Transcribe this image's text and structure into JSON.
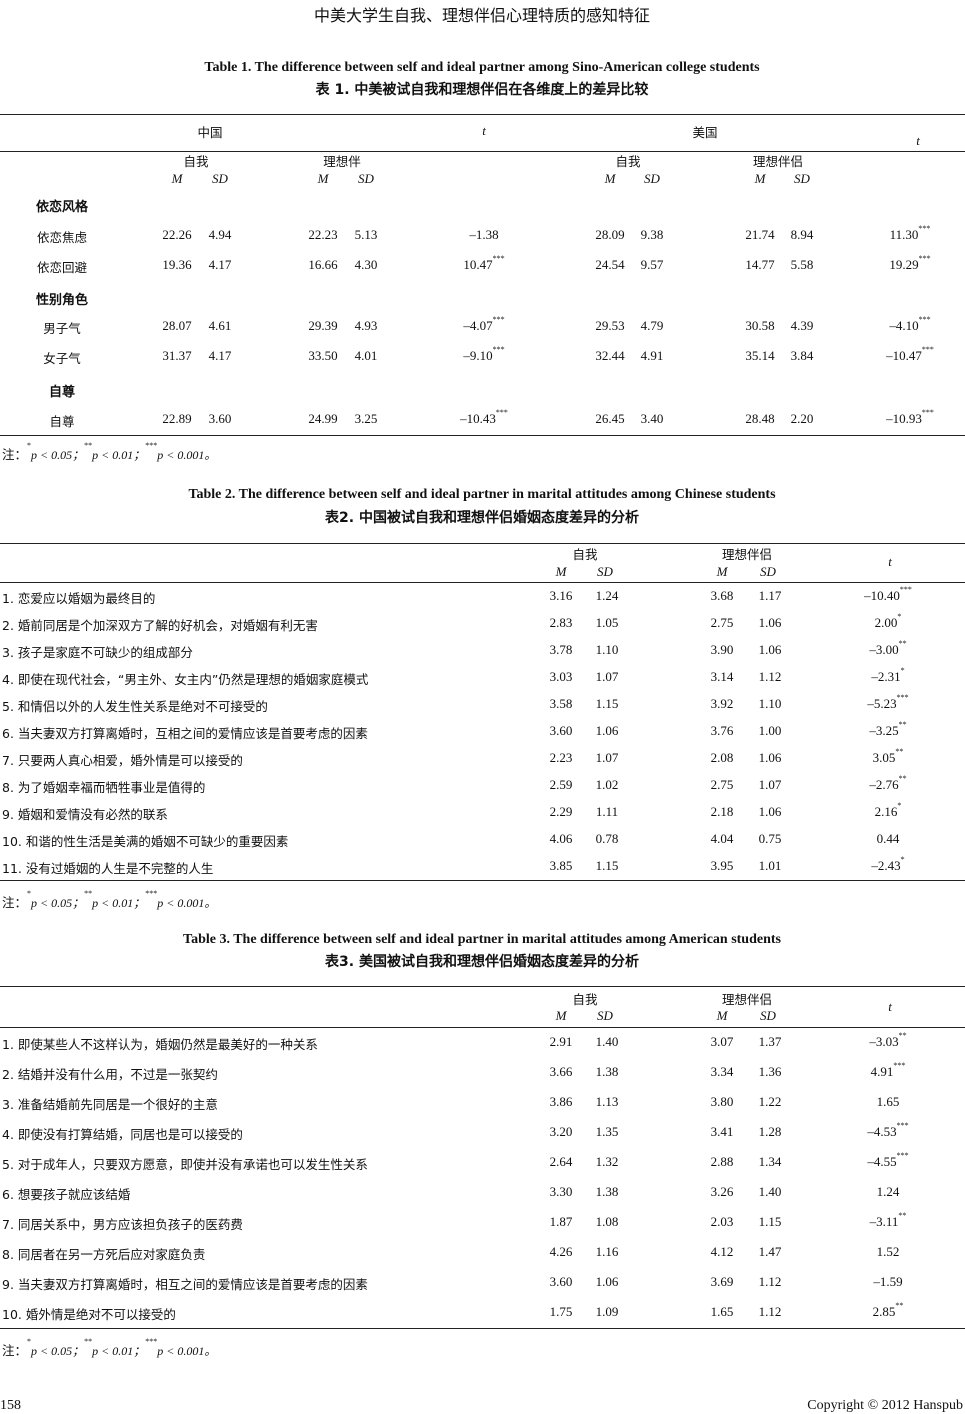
{
  "running_header": "中美大学生自我、理想伴侣心理特质的感知特征",
  "common": {
    "self": "自我",
    "ideal": "理想伴侣",
    "M": "M",
    "SD": "SD",
    "t": "t",
    "note_prefix": "注：",
    "note_p1": "p < 0.05；",
    "note_p2": "p < 0.01；",
    "note_p3": "p < 0.001。",
    "sig1": "*",
    "sig2": "**",
    "sig3": "***"
  },
  "table1": {
    "caption_en": "Table 1. The difference between self and ideal partner among Sino-American college students",
    "caption_zh": "表 1.  中美被试自我和理想伴侣在各维度上的差异比较",
    "group_china": "中国",
    "group_usa": "美国",
    "self": "自我",
    "ideal_cn": "理想伴",
    "ideal_us": "理想伴侣",
    "rows": [
      {
        "label": "依恋风格",
        "section": true
      },
      {
        "label": "依恋焦虑",
        "v": [
          "22.26",
          "4.94",
          "22.23",
          "5.13",
          "–1.38",
          "",
          "28.09",
          "9.38",
          "21.74",
          "8.94",
          "11.30",
          "***"
        ]
      },
      {
        "label": "依恋回避",
        "v": [
          "19.36",
          "4.17",
          "16.66",
          "4.30",
          "10.47",
          "***",
          "24.54",
          "9.57",
          "14.77",
          "5.58",
          "19.29",
          "***"
        ]
      },
      {
        "label": "性别角色",
        "section": true
      },
      {
        "label": "男子气",
        "v": [
          "28.07",
          "4.61",
          "29.39",
          "4.93",
          "–4.07",
          "***",
          "29.53",
          "4.79",
          "30.58",
          "4.39",
          "–4.10",
          "***"
        ]
      },
      {
        "label": "女子气",
        "v": [
          "31.37",
          "4.17",
          "33.50",
          "4.01",
          "–9.10",
          "***",
          "32.44",
          "4.91",
          "35.14",
          "3.84",
          "–10.47",
          "***"
        ]
      },
      {
        "label": "自尊",
        "section": true
      },
      {
        "label": "自尊",
        "v": [
          "22.89",
          "3.60",
          "24.99",
          "3.25",
          "–10.43",
          "***",
          "26.45",
          "3.40",
          "28.48",
          "2.20",
          "–10.93",
          "***"
        ]
      }
    ]
  },
  "table2": {
    "caption_en": "Table 2. The difference between self and ideal partner in marital attitudes among Chinese students",
    "caption_zh": "表2.  中国被试自我和理想伴侣婚姻态度差异的分析",
    "rows": [
      {
        "label": "1.  恋爱应以婚姻为最终目的",
        "v": [
          "3.16",
          "1.24",
          "3.68",
          "1.17",
          "–10.40",
          "***"
        ]
      },
      {
        "label": "2.  婚前同居是个加深双方了解的好机会，对婚姻有利无害",
        "v": [
          "2.83",
          "1.05",
          "2.75",
          "1.06",
          "2.00",
          "*"
        ]
      },
      {
        "label": "3.  孩子是家庭不可缺少的组成部分",
        "v": [
          "3.78",
          "1.10",
          "3.90",
          "1.06",
          "–3.00",
          "**"
        ]
      },
      {
        "label": "4.  即使在现代社会，“男主外、女主内”仍然是理想的婚姻家庭模式",
        "v": [
          "3.03",
          "1.07",
          "3.14",
          "1.12",
          "–2.31",
          "*"
        ]
      },
      {
        "label": "5.  和情侣以外的人发生性关系是绝对不可接受的",
        "v": [
          "3.58",
          "1.15",
          "3.92",
          "1.10",
          "–5.23",
          "***"
        ]
      },
      {
        "label": "6.  当夫妻双方打算离婚时，互相之间的爱情应该是首要考虑的因素",
        "v": [
          "3.60",
          "1.06",
          "3.76",
          "1.00",
          "–3.25",
          "**"
        ]
      },
      {
        "label": "7.  只要两人真心相爱，婚外情是可以接受的",
        "v": [
          "2.23",
          "1.07",
          "2.08",
          "1.06",
          "3.05",
          "**"
        ]
      },
      {
        "label": "8.  为了婚姻幸福而牺牲事业是值得的",
        "v": [
          "2.59",
          "1.02",
          "2.75",
          "1.07",
          "–2.76",
          "**"
        ]
      },
      {
        "label": "9.  婚姻和爱情没有必然的联系",
        "v": [
          "2.29",
          "1.11",
          "2.18",
          "1.06",
          "2.16",
          "*"
        ]
      },
      {
        "label": "10.  和谐的性生活是美满的婚姻不可缺少的重要因素",
        "v": [
          "4.06",
          "0.78",
          "4.04",
          "0.75",
          "0.44",
          ""
        ]
      },
      {
        "label": "11.  没有过婚姻的人生是不完整的人生",
        "v": [
          "3.85",
          "1.15",
          "3.95",
          "1.01",
          "–2.43",
          "*"
        ]
      }
    ]
  },
  "table3": {
    "caption_en": "Table 3. The difference between self and ideal partner in marital attitudes among American students",
    "caption_zh": "表3.  美国被试自我和理想伴侣婚姻态度差异的分析",
    "rows": [
      {
        "label": "1.  即使某些人不这样认为，婚姻仍然是最美好的一种关系",
        "v": [
          "2.91",
          "1.40",
          "3.07",
          "1.37",
          "–3.03",
          "**"
        ]
      },
      {
        "label": "2.  结婚并没有什么用，不过是一张契约",
        "v": [
          "3.66",
          "1.38",
          "3.34",
          "1.36",
          "4.91",
          "***"
        ]
      },
      {
        "label": "3.  准备结婚前先同居是一个很好的主意",
        "v": [
          "3.86",
          "1.13",
          "3.80",
          "1.22",
          "1.65",
          ""
        ]
      },
      {
        "label": "4.  即使没有打算结婚，同居也是可以接受的",
        "v": [
          "3.20",
          "1.35",
          "3.41",
          "1.28",
          "–4.53",
          "***"
        ]
      },
      {
        "label": "5.  对于成年人，只要双方愿意，即使并没有承诺也可以发生性关系",
        "v": [
          "2.64",
          "1.32",
          "2.88",
          "1.34",
          "–4.55",
          "***"
        ]
      },
      {
        "label": "6.  想要孩子就应该结婚",
        "v": [
          "3.30",
          "1.38",
          "3.26",
          "1.40",
          "1.24",
          ""
        ]
      },
      {
        "label": "7.  同居关系中，男方应该担负孩子的医药费",
        "v": [
          "1.87",
          "1.08",
          "2.03",
          "1.15",
          "–3.11",
          "**"
        ]
      },
      {
        "label": "8.  同居者在另一方死后应对家庭负责",
        "v": [
          "4.26",
          "1.16",
          "4.12",
          "1.47",
          "1.52",
          ""
        ]
      },
      {
        "label": "9.  当夫妻双方打算离婚时，相互之间的爱情应该是首要考虑的因素",
        "v": [
          "3.60",
          "1.06",
          "3.69",
          "1.12",
          "–1.59",
          ""
        ]
      },
      {
        "label": "10.  婚外情是绝对不可以接受的",
        "v": [
          "1.75",
          "1.09",
          "1.65",
          "1.12",
          "2.85",
          "**"
        ]
      }
    ]
  },
  "footer": {
    "page_number": "158",
    "copyright": "Copyright © 2012 Hanspub"
  }
}
